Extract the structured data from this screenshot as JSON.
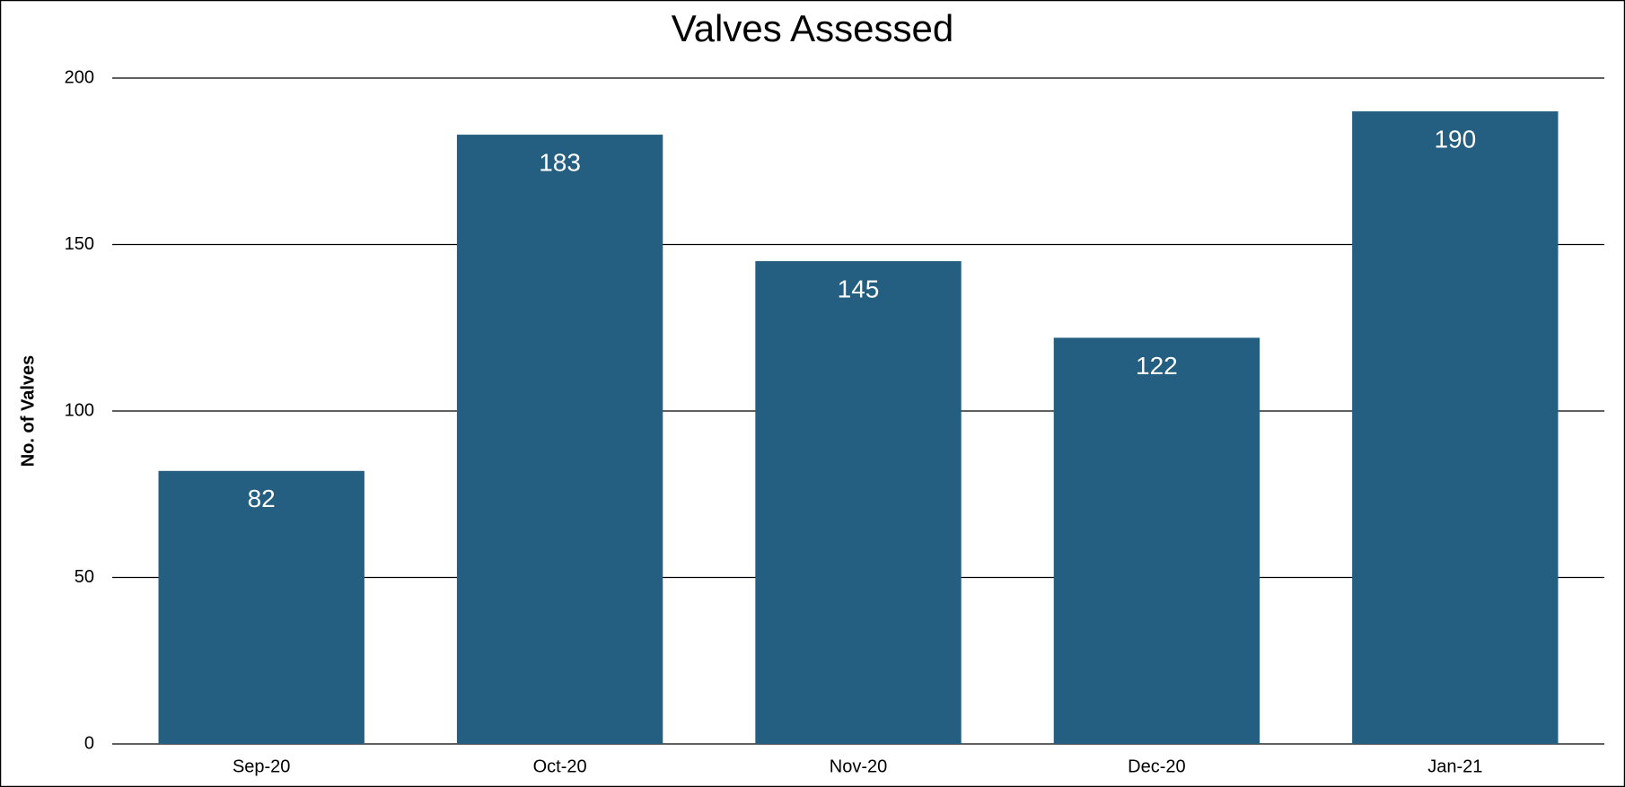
{
  "chart_data": {
    "type": "bar",
    "title": "Valves Assessed",
    "y_label": "No. of Valves",
    "categories": [
      "Sep-20",
      "Oct-20",
      "Nov-20",
      "Dec-20",
      "Jan-21"
    ],
    "values": [
      82,
      183,
      145,
      122,
      190
    ],
    "color": "#245e80",
    "ylim": [
      0,
      200
    ],
    "yticks": [
      0,
      50,
      100,
      150,
      200
    ],
    "grid": true
  }
}
